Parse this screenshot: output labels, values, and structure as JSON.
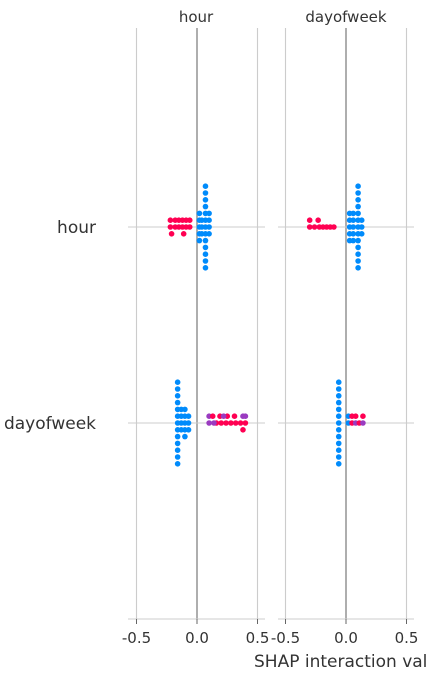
{
  "chart_data": {
    "type": "scatter",
    "kind": "SHAP interaction summary (matrix of beeswarm panels)",
    "xlabel": "SHAP interaction valu",
    "columns": [
      "hour",
      "dayofweek"
    ],
    "rows": [
      "hour",
      "dayofweek"
    ],
    "xlim": [
      -0.55,
      0.55
    ],
    "xticks": [
      -0.5,
      0.0,
      0.5
    ],
    "xtick_labels": [
      "-0.5",
      "0.0",
      "0.5"
    ],
    "grid": true,
    "colors": {
      "high": "#ff0052",
      "low": "#008bfb",
      "mid": "#9a3bc0",
      "gridline": "#cccccc",
      "zeroline": "#999999"
    },
    "panels": [
      {
        "row": "hour",
        "col": "hour",
        "points": [
          {
            "x": 0.07,
            "y": 6,
            "c": "low"
          },
          {
            "x": 0.07,
            "y": 5,
            "c": "low"
          },
          {
            "x": 0.07,
            "y": 4,
            "c": "low"
          },
          {
            "x": 0.07,
            "y": 3,
            "c": "low"
          },
          {
            "x": 0.07,
            "y": 2,
            "c": "low"
          },
          {
            "x": 0.07,
            "y": 1,
            "c": "low"
          },
          {
            "x": 0.07,
            "y": 0,
            "c": "low"
          },
          {
            "x": 0.07,
            "y": -1,
            "c": "low"
          },
          {
            "x": 0.07,
            "y": -2,
            "c": "low"
          },
          {
            "x": 0.07,
            "y": -3,
            "c": "low"
          },
          {
            "x": 0.07,
            "y": -4,
            "c": "low"
          },
          {
            "x": 0.07,
            "y": -5,
            "c": "low"
          },
          {
            "x": 0.07,
            "y": -6,
            "c": "low"
          },
          {
            "x": 0.02,
            "y": 2,
            "c": "low"
          },
          {
            "x": 0.02,
            "y": 1,
            "c": "low"
          },
          {
            "x": 0.02,
            "y": 0,
            "c": "low"
          },
          {
            "x": 0.02,
            "y": -1,
            "c": "low"
          },
          {
            "x": 0.02,
            "y": -2,
            "c": "low"
          },
          {
            "x": 0.04,
            "y": 1,
            "c": "low"
          },
          {
            "x": 0.04,
            "y": 0,
            "c": "low"
          },
          {
            "x": 0.04,
            "y": -1,
            "c": "low"
          },
          {
            "x": 0.1,
            "y": 2,
            "c": "low"
          },
          {
            "x": 0.1,
            "y": 1,
            "c": "low"
          },
          {
            "x": 0.1,
            "y": 0,
            "c": "low"
          },
          {
            "x": 0.1,
            "y": -1,
            "c": "low"
          },
          {
            "x": -0.22,
            "y": 1,
            "c": "high"
          },
          {
            "x": -0.22,
            "y": 0,
            "c": "high"
          },
          {
            "x": -0.21,
            "y": -1,
            "c": "high"
          },
          {
            "x": -0.18,
            "y": 1,
            "c": "high"
          },
          {
            "x": -0.18,
            "y": 0,
            "c": "high"
          },
          {
            "x": -0.15,
            "y": 1,
            "c": "high"
          },
          {
            "x": -0.15,
            "y": 0,
            "c": "high"
          },
          {
            "x": -0.12,
            "y": 1,
            "c": "high"
          },
          {
            "x": -0.12,
            "y": 0,
            "c": "high"
          },
          {
            "x": -0.09,
            "y": 1,
            "c": "high"
          },
          {
            "x": -0.09,
            "y": 0,
            "c": "high"
          },
          {
            "x": -0.06,
            "y": 1,
            "c": "high"
          },
          {
            "x": -0.06,
            "y": 0,
            "c": "high"
          },
          {
            "x": -0.11,
            "y": -1,
            "c": "high"
          }
        ]
      },
      {
        "row": "hour",
        "col": "dayofweek",
        "points": [
          {
            "x": 0.1,
            "y": 6,
            "c": "low"
          },
          {
            "x": 0.1,
            "y": 5,
            "c": "low"
          },
          {
            "x": 0.1,
            "y": 4,
            "c": "low"
          },
          {
            "x": 0.1,
            "y": 3,
            "c": "low"
          },
          {
            "x": 0.1,
            "y": 2,
            "c": "low"
          },
          {
            "x": 0.1,
            "y": 1,
            "c": "low"
          },
          {
            "x": 0.1,
            "y": 0,
            "c": "low"
          },
          {
            "x": 0.1,
            "y": -1,
            "c": "low"
          },
          {
            "x": 0.1,
            "y": -2,
            "c": "low"
          },
          {
            "x": 0.1,
            "y": -3,
            "c": "low"
          },
          {
            "x": 0.1,
            "y": -4,
            "c": "low"
          },
          {
            "x": 0.1,
            "y": -5,
            "c": "low"
          },
          {
            "x": 0.1,
            "y": -6,
            "c": "low"
          },
          {
            "x": 0.03,
            "y": 2,
            "c": "low"
          },
          {
            "x": 0.03,
            "y": 1,
            "c": "low"
          },
          {
            "x": 0.03,
            "y": 0,
            "c": "low"
          },
          {
            "x": 0.03,
            "y": -1,
            "c": "low"
          },
          {
            "x": 0.03,
            "y": -2,
            "c": "low"
          },
          {
            "x": 0.06,
            "y": 2,
            "c": "low"
          },
          {
            "x": 0.06,
            "y": 1,
            "c": "low"
          },
          {
            "x": 0.06,
            "y": 0,
            "c": "low"
          },
          {
            "x": 0.06,
            "y": -1,
            "c": "low"
          },
          {
            "x": 0.06,
            "y": -2,
            "c": "low"
          },
          {
            "x": 0.13,
            "y": 1,
            "c": "low"
          },
          {
            "x": 0.13,
            "y": 0,
            "c": "low"
          },
          {
            "x": 0.13,
            "y": -1,
            "c": "low"
          },
          {
            "x": -0.3,
            "y": 1,
            "c": "high"
          },
          {
            "x": -0.3,
            "y": 0,
            "c": "high"
          },
          {
            "x": -0.26,
            "y": 0,
            "c": "high"
          },
          {
            "x": -0.23,
            "y": 1,
            "c": "high"
          },
          {
            "x": -0.22,
            "y": 0,
            "c": "high"
          },
          {
            "x": -0.19,
            "y": 0,
            "c": "high"
          },
          {
            "x": -0.16,
            "y": 0,
            "c": "high"
          },
          {
            "x": -0.13,
            "y": 0,
            "c": "high"
          },
          {
            "x": -0.1,
            "y": 0,
            "c": "high"
          }
        ]
      },
      {
        "row": "dayofweek",
        "col": "hour",
        "points": [
          {
            "x": -0.16,
            "y": 6,
            "c": "low"
          },
          {
            "x": -0.16,
            "y": 5,
            "c": "low"
          },
          {
            "x": -0.16,
            "y": 4,
            "c": "low"
          },
          {
            "x": -0.16,
            "y": 3,
            "c": "low"
          },
          {
            "x": -0.16,
            "y": 2,
            "c": "low"
          },
          {
            "x": -0.16,
            "y": 1,
            "c": "low"
          },
          {
            "x": -0.16,
            "y": 0,
            "c": "low"
          },
          {
            "x": -0.16,
            "y": -1,
            "c": "low"
          },
          {
            "x": -0.16,
            "y": -2,
            "c": "low"
          },
          {
            "x": -0.16,
            "y": -3,
            "c": "low"
          },
          {
            "x": -0.16,
            "y": -4,
            "c": "low"
          },
          {
            "x": -0.16,
            "y": -5,
            "c": "low"
          },
          {
            "x": -0.16,
            "y": -6,
            "c": "low"
          },
          {
            "x": -0.13,
            "y": 2,
            "c": "low"
          },
          {
            "x": -0.13,
            "y": 1,
            "c": "low"
          },
          {
            "x": -0.13,
            "y": 0,
            "c": "low"
          },
          {
            "x": -0.13,
            "y": -1,
            "c": "low"
          },
          {
            "x": -0.1,
            "y": 2,
            "c": "low"
          },
          {
            "x": -0.1,
            "y": 1,
            "c": "low"
          },
          {
            "x": -0.1,
            "y": 0,
            "c": "low"
          },
          {
            "x": -0.1,
            "y": -1,
            "c": "low"
          },
          {
            "x": -0.1,
            "y": -2,
            "c": "low"
          },
          {
            "x": -0.07,
            "y": 1,
            "c": "low"
          },
          {
            "x": -0.07,
            "y": 0,
            "c": "low"
          },
          {
            "x": -0.07,
            "y": -1,
            "c": "low"
          },
          {
            "x": 0.1,
            "y": 1,
            "c": "mid"
          },
          {
            "x": 0.1,
            "y": 0,
            "c": "mid"
          },
          {
            "x": 0.13,
            "y": 1,
            "c": "high"
          },
          {
            "x": 0.16,
            "y": 0,
            "c": "high"
          },
          {
            "x": 0.19,
            "y": 1,
            "c": "high"
          },
          {
            "x": 0.2,
            "y": 0,
            "c": "high"
          },
          {
            "x": 0.24,
            "y": 0,
            "c": "high"
          },
          {
            "x": 0.25,
            "y": 1,
            "c": "high"
          },
          {
            "x": 0.28,
            "y": 0,
            "c": "high"
          },
          {
            "x": 0.31,
            "y": 1,
            "c": "high"
          },
          {
            "x": 0.32,
            "y": 0,
            "c": "high"
          },
          {
            "x": 0.36,
            "y": 0,
            "c": "high"
          },
          {
            "x": 0.38,
            "y": 1,
            "c": "mid"
          },
          {
            "x": 0.4,
            "y": 1,
            "c": "mid"
          },
          {
            "x": 0.4,
            "y": 0,
            "c": "high"
          },
          {
            "x": 0.38,
            "y": -1,
            "c": "high"
          },
          {
            "x": 0.22,
            "y": 1,
            "c": "mid"
          },
          {
            "x": 0.14,
            "y": 0,
            "c": "mid"
          }
        ]
      },
      {
        "row": "dayofweek",
        "col": "dayofweek",
        "points": [
          {
            "x": -0.06,
            "y": 6,
            "c": "low"
          },
          {
            "x": -0.06,
            "y": 5,
            "c": "low"
          },
          {
            "x": -0.06,
            "y": 4,
            "c": "low"
          },
          {
            "x": -0.06,
            "y": 3,
            "c": "low"
          },
          {
            "x": -0.06,
            "y": 2,
            "c": "low"
          },
          {
            "x": -0.06,
            "y": 1,
            "c": "low"
          },
          {
            "x": -0.06,
            "y": 0,
            "c": "low"
          },
          {
            "x": -0.06,
            "y": -1,
            "c": "low"
          },
          {
            "x": -0.06,
            "y": -2,
            "c": "low"
          },
          {
            "x": -0.06,
            "y": -3,
            "c": "low"
          },
          {
            "x": -0.06,
            "y": -4,
            "c": "low"
          },
          {
            "x": -0.06,
            "y": -5,
            "c": "low"
          },
          {
            "x": -0.06,
            "y": -6,
            "c": "low"
          },
          {
            "x": 0.02,
            "y": 1,
            "c": "low"
          },
          {
            "x": 0.02,
            "y": 0,
            "c": "low"
          },
          {
            "x": 0.05,
            "y": 1,
            "c": "high"
          },
          {
            "x": 0.05,
            "y": 0,
            "c": "high"
          },
          {
            "x": 0.08,
            "y": 1,
            "c": "high"
          },
          {
            "x": 0.08,
            "y": 0,
            "c": "mid"
          },
          {
            "x": 0.11,
            "y": 0,
            "c": "high"
          },
          {
            "x": 0.14,
            "y": 1,
            "c": "high"
          },
          {
            "x": 0.14,
            "y": 0,
            "c": "mid"
          }
        ]
      }
    ]
  }
}
